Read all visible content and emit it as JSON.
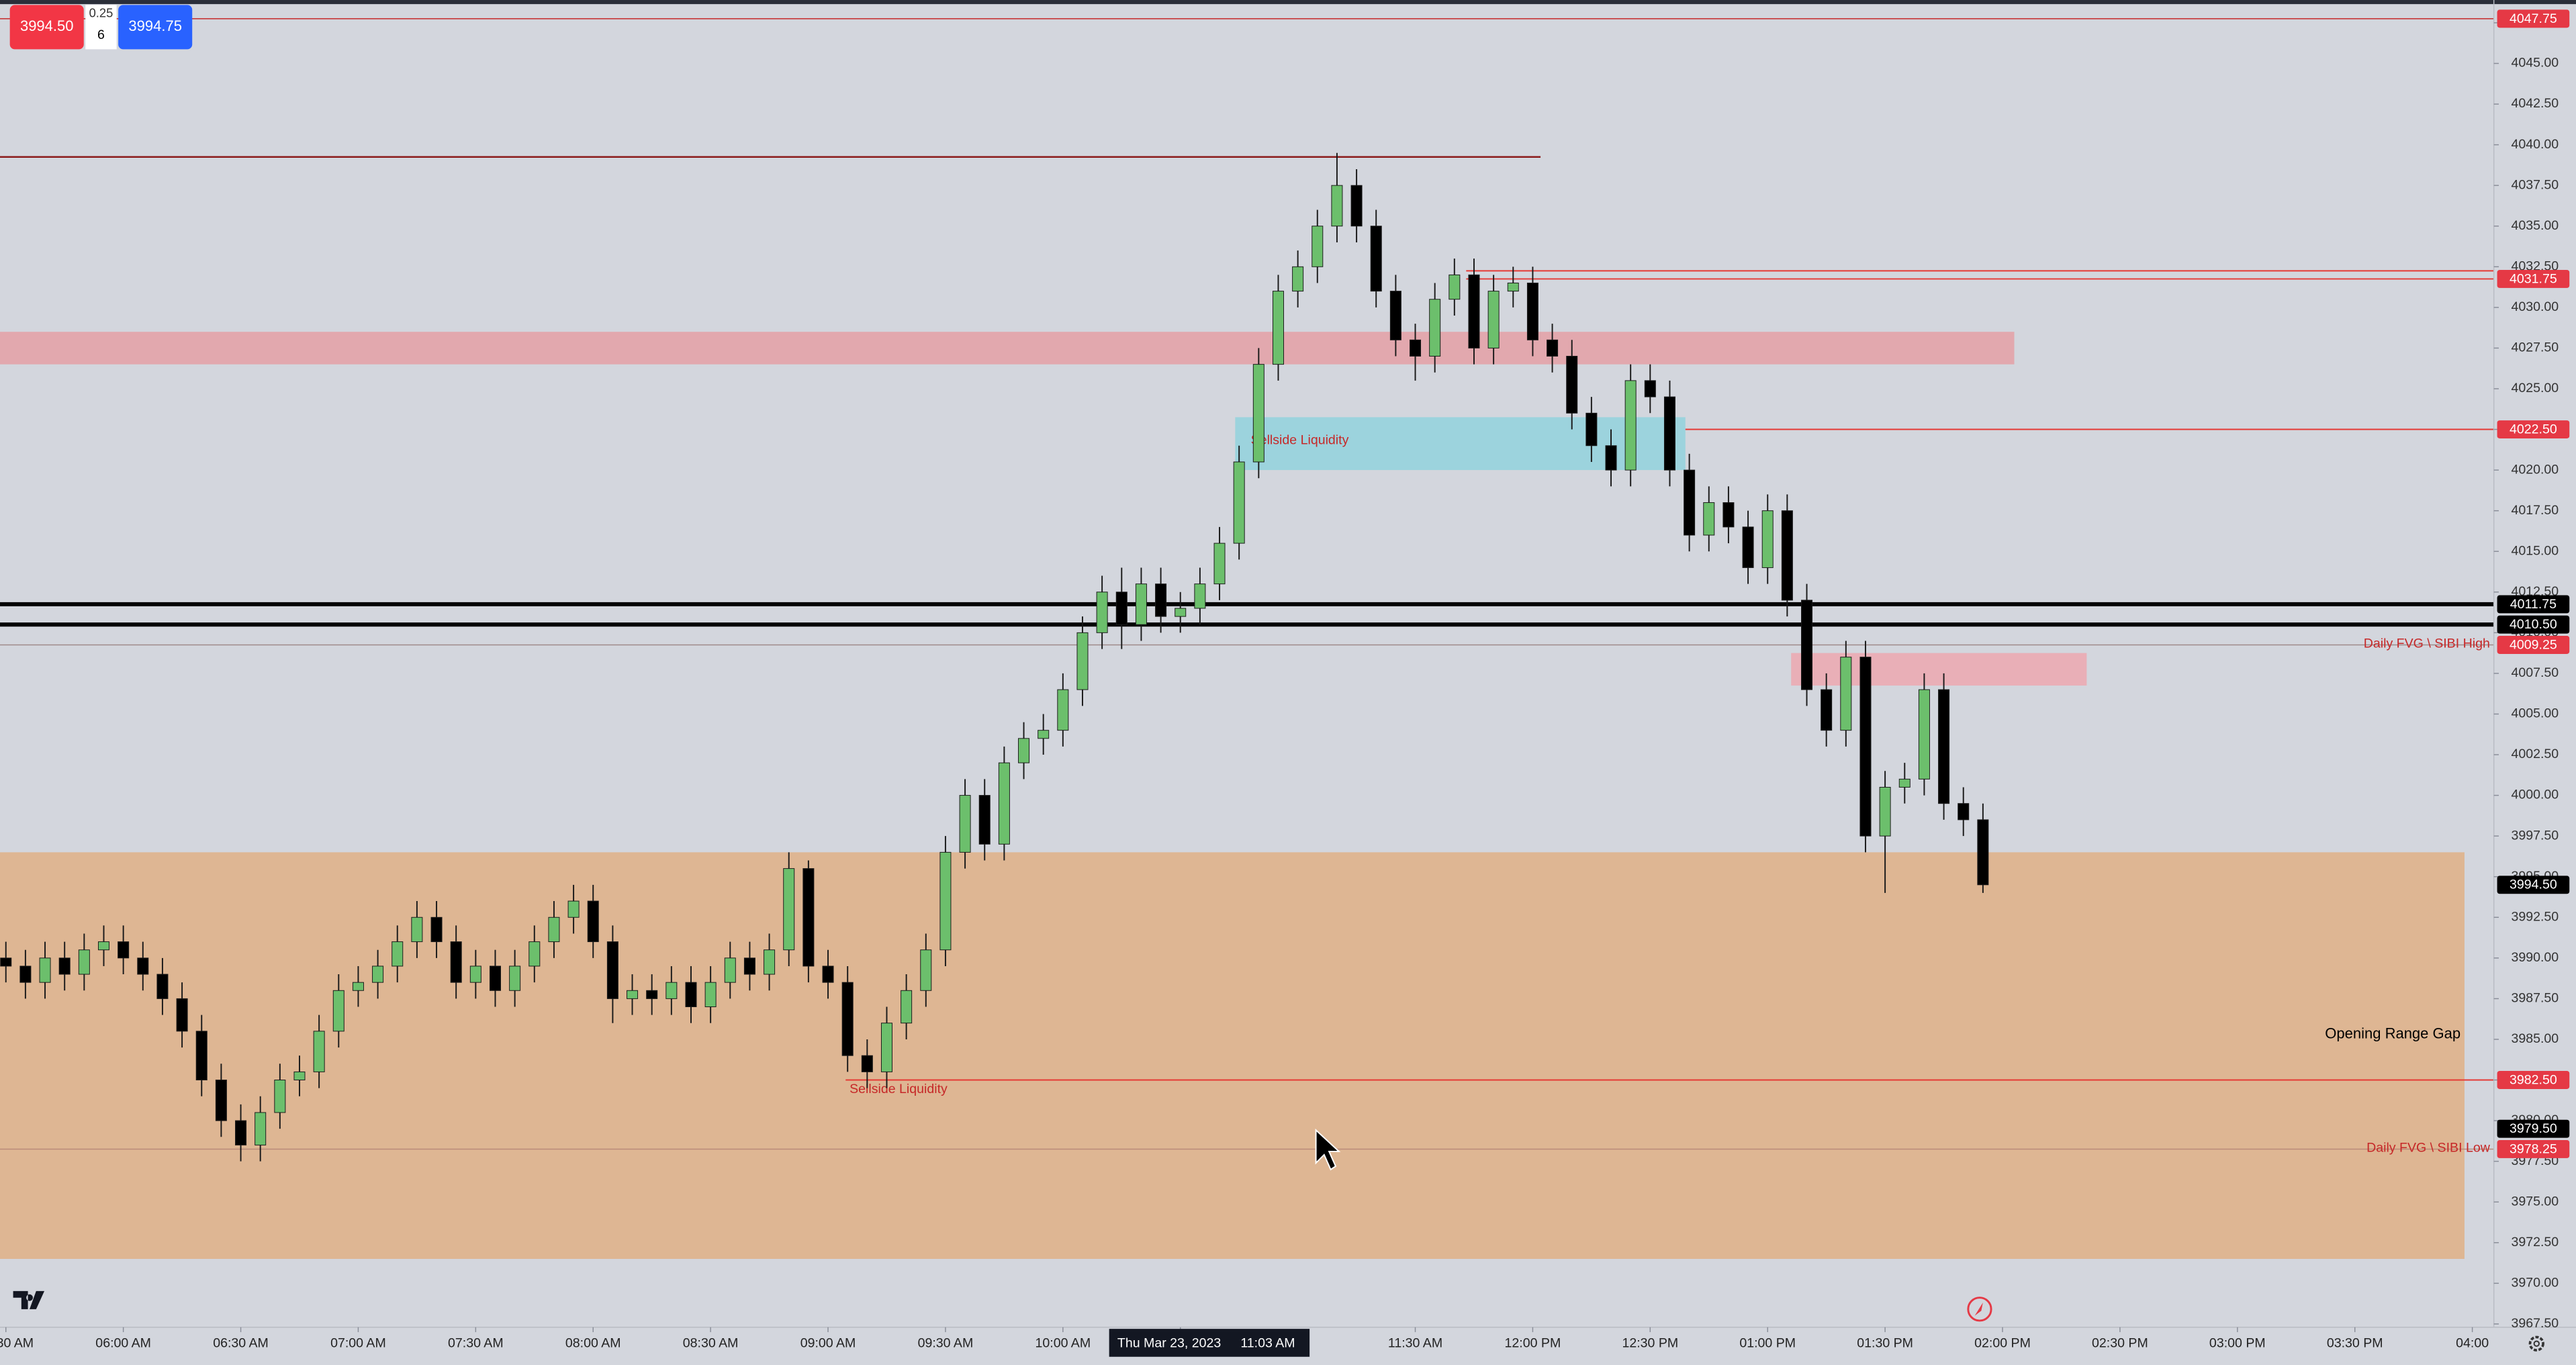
{
  "chart_data": {
    "type": "candlestick",
    "x": [
      330,
      335,
      340,
      345,
      350,
      355,
      360,
      365,
      370,
      375,
      380,
      385,
      390,
      395,
      400,
      405,
      410,
      415,
      420,
      425,
      430,
      435,
      440,
      445,
      450,
      455,
      460,
      465,
      470,
      475,
      480,
      485,
      490,
      495,
      500,
      505,
      510,
      515,
      520,
      525,
      530,
      535,
      540,
      545,
      550,
      555,
      560,
      565,
      570,
      575,
      580,
      585,
      590,
      595,
      600,
      605,
      610,
      615,
      620,
      625,
      630,
      635,
      640,
      645,
      650,
      655,
      660,
      665,
      670,
      675,
      680,
      685,
      690,
      695,
      700,
      705,
      710,
      715,
      720,
      725,
      730,
      735,
      740,
      745,
      750,
      755,
      760,
      765,
      770,
      775,
      780,
      785,
      790,
      795,
      800,
      805,
      810,
      815,
      820,
      825,
      830,
      835
    ],
    "open": [
      3990,
      3989.5,
      3988.5,
      3990,
      3989,
      3990.5,
      3991,
      3990,
      3989,
      3987.5,
      3985.5,
      3982.5,
      3980,
      3978.5,
      3980.5,
      3982.5,
      3983,
      3985.5,
      3988,
      3988.5,
      3989.5,
      3991,
      3992.5,
      3991,
      3988.5,
      3989.5,
      3988,
      3989.5,
      3991,
      3992.5,
      3993.5,
      3991,
      3987.5,
      3988,
      3987.5,
      3988.5,
      3987,
      3988.5,
      3990,
      3989,
      3990.5,
      3995.5,
      3989.5,
      3988.5,
      3984,
      3983,
      3986,
      3988,
      3990.5,
      3996.5,
      4000,
      3997,
      4002,
      4003.5,
      4004,
      4006.5,
      4010,
      4012.5,
      4010.5,
      4013,
      4011,
      4011.5,
      4013,
      4015.5,
      4020.5,
      4026.5,
      4031,
      4032.5,
      4035,
      4037.5,
      4035,
      4031,
      4028,
      4027,
      4030.5,
      4032,
      4027.5,
      4031,
      4031.5,
      4028,
      4027,
      4023.5,
      4021.5,
      4020,
      4025.5,
      4024.5,
      4020,
      4016,
      4018,
      4016.5,
      4014,
      4017.5,
      4012,
      4006.5,
      4004,
      4008.5,
      3997.5,
      4000.5,
      4001,
      4006.5,
      3999.5,
      3998.5
    ],
    "high": [
      3991,
      3990.5,
      3991,
      3991,
      3991.5,
      3992,
      3992,
      3991,
      3990,
      3988.5,
      3986.5,
      3983.5,
      3981,
      3981.5,
      3983.5,
      3984,
      3986.5,
      3989,
      3989.5,
      3990.5,
      3992,
      3993.5,
      3993.5,
      3992,
      3990.5,
      3990.5,
      3990.5,
      3992,
      3993.5,
      3994.5,
      3994.5,
      3992,
      3989,
      3989,
      3989.5,
      3989.5,
      3989.5,
      3991,
      3991,
      3991.5,
      3996.5,
      3996,
      3990.5,
      3989.5,
      3985,
      3987,
      3989,
      3991.5,
      3997.5,
      4001,
      4001,
      4003,
      4004.5,
      4005,
      4007.5,
      4011,
      4013.5,
      4014,
      4014,
      4014,
      4012.5,
      4014,
      4016.5,
      4021.5,
      4027.5,
      4032,
      4033.5,
      4036,
      4039.5,
      4038.5,
      4036,
      4032,
      4029,
      4031.5,
      4033,
      4033,
      4032,
      4032.5,
      4032.5,
      4029,
      4028,
      4024.5,
      4022.5,
      4026.5,
      4026.5,
      4025.5,
      4021,
      4019,
      4019,
      4017.5,
      4018.5,
      4018.5,
      4013,
      4007.5,
      4009.5,
      4009.5,
      4001.5,
      4002,
      4007.5,
      4007.5,
      4000.5,
      3999.5
    ],
    "low": [
      3988.5,
      3987.5,
      3987.5,
      3988,
      3988,
      3989.5,
      3989,
      3988,
      3986.5,
      3984.5,
      3981.5,
      3979,
      3977.5,
      3977.5,
      3979.5,
      3981.5,
      3982,
      3984.5,
      3987,
      3987.5,
      3988.5,
      3990,
      3990,
      3987.5,
      3987.5,
      3987,
      3987,
      3988.5,
      3990,
      3991.5,
      3990,
      3986,
      3986.5,
      3986.5,
      3986.5,
      3986,
      3986,
      3987.5,
      3988,
      3988,
      3989.5,
      3988.5,
      3987.5,
      3983,
      3982,
      3982,
      3985,
      3987,
      3989.5,
      3995.5,
      3996,
      3996,
      4001,
      4002.5,
      4003,
      4005.5,
      4009,
      4009,
      4009.5,
      4010,
      4010,
      4010.5,
      4012,
      4014.5,
      4019.5,
      4025.5,
      4030,
      4031.5,
      4034,
      4034,
      4030,
      4027,
      4025.5,
      4026,
      4029.5,
      4026.5,
      4026.5,
      4030,
      4027,
      4026,
      4022.5,
      4020.5,
      4019,
      4019,
      4023.5,
      4019,
      4015,
      4015,
      4015.5,
      4013,
      4013,
      4011,
      4005.5,
      4003,
      4003,
      3996.5,
      3994,
      3999.5,
      4000,
      3998.5,
      3997.5,
      3994
    ],
    "close": [
      3989.5,
      3988.5,
      3990,
      3989,
      3990.5,
      3991,
      3990,
      3989,
      3987.5,
      3985.5,
      3982.5,
      3980,
      3978.5,
      3980.5,
      3982.5,
      3983,
      3985.5,
      3988,
      3988.5,
      3989.5,
      3991,
      3992.5,
      3991,
      3988.5,
      3989.5,
      3988,
      3989.5,
      3991,
      3992.5,
      3993.5,
      3991,
      3987.5,
      3988,
      3987.5,
      3988.5,
      3987,
      3988.5,
      3990,
      3989,
      3990.5,
      3995.5,
      3989.5,
      3988.5,
      3984,
      3983,
      3986,
      3988,
      3990.5,
      3996.5,
      4000,
      3997,
      4002,
      4003.5,
      4004,
      4006.5,
      4010,
      4012.5,
      4010.5,
      4013,
      4011,
      4011.5,
      4013,
      4015.5,
      4020.5,
      4026.5,
      4031,
      4032.5,
      4035,
      4037.5,
      4035,
      4031,
      4028,
      4027,
      4030.5,
      4032,
      4027.5,
      4031,
      4031.5,
      4028,
      4027,
      4023.5,
      4021.5,
      4020,
      4025.5,
      4024.5,
      4020,
      4016,
      4018,
      4016.5,
      4014,
      4017.5,
      4012,
      4006.5,
      4004,
      4008.5,
      3997.5,
      4000.5,
      4001,
      4006.5,
      3999.5,
      3998.5,
      3994.5
    ],
    "up_color": "#6cbf6c",
    "down_color": "#000000",
    "xlim": [
      328.5,
      965.5
    ],
    "xticks": [
      {
        "value": 330,
        "label": "05:30 AM"
      },
      {
        "value": 360,
        "label": "06:00 AM"
      },
      {
        "value": 390,
        "label": "06:30 AM"
      },
      {
        "value": 420,
        "label": "07:00 AM"
      },
      {
        "value": 450,
        "label": "07:30 AM"
      },
      {
        "value": 480,
        "label": "08:00 AM"
      },
      {
        "value": 510,
        "label": "08:30 AM"
      },
      {
        "value": 540,
        "label": "09:00 AM"
      },
      {
        "value": 570,
        "label": "09:30 AM"
      },
      {
        "value": 600,
        "label": "10:00 AM"
      },
      {
        "value": 630,
        "label": "10:30 AM"
      },
      {
        "value": 690,
        "label": "11:30 AM"
      },
      {
        "value": 720,
        "label": "12:00 PM"
      },
      {
        "value": 750,
        "label": "12:30 PM"
      },
      {
        "value": 780,
        "label": "01:00 PM"
      },
      {
        "value": 810,
        "label": "01:30 PM"
      },
      {
        "value": 840,
        "label": "02:00 PM"
      },
      {
        "value": 870,
        "label": "02:30 PM"
      },
      {
        "value": 900,
        "label": "03:00 PM"
      },
      {
        "value": 930,
        "label": "03:30 PM"
      },
      {
        "value": 960,
        "label": "04:00"
      }
    ],
    "ylim": [
      3967.3,
      4048.9
    ],
    "yticks": [
      {
        "value": 3967.5,
        "label": "3967.50"
      },
      {
        "value": 3970,
        "label": "3970.00"
      },
      {
        "value": 3972.5,
        "label": "3972.50"
      },
      {
        "value": 3975,
        "label": "3975.00"
      },
      {
        "value": 3977.5,
        "label": "3977.50"
      },
      {
        "value": 3980,
        "label": "3980.00"
      },
      {
        "value": 3982.5,
        "label": "3982.50"
      },
      {
        "value": 3985,
        "label": "3985.00"
      },
      {
        "value": 3987.5,
        "label": "3987.50"
      },
      {
        "value": 3990,
        "label": "3990.00"
      },
      {
        "value": 3992.5,
        "label": "3992.50"
      },
      {
        "value": 3995,
        "label": "3995.00"
      },
      {
        "value": 3997.5,
        "label": "3997.50"
      },
      {
        "value": 4000,
        "label": "4000.00"
      },
      {
        "value": 4002.5,
        "label": "4002.50"
      },
      {
        "value": 4005,
        "label": "4005.00"
      },
      {
        "value": 4007.5,
        "label": "4007.50"
      },
      {
        "value": 4010,
        "label": "4010.00"
      },
      {
        "value": 4012.5,
        "label": "4012.50"
      },
      {
        "value": 4015,
        "label": "4015.00"
      },
      {
        "value": 4017.5,
        "label": "4017.50"
      },
      {
        "value": 4020,
        "label": "4020.00"
      },
      {
        "value": 4022.5,
        "label": "4022.50"
      },
      {
        "value": 4025,
        "label": "4025.00"
      },
      {
        "value": 4027.5,
        "label": "4027.50"
      },
      {
        "value": 4030,
        "label": "4030.00"
      },
      {
        "value": 4032.5,
        "label": "4032.50"
      },
      {
        "value": 4035,
        "label": "4035.00"
      },
      {
        "value": 4037.5,
        "label": "4037.50"
      },
      {
        "value": 4040,
        "label": "4040.00"
      },
      {
        "value": 4042.5,
        "label": "4042.50"
      },
      {
        "value": 4045,
        "label": "4045.00"
      },
      {
        "value": 4047.5,
        "label": "4047.50"
      }
    ],
    "grid": false,
    "zones": [
      {
        "range": [
          3971.5,
          3996.5
        ],
        "x": [
          328.5,
          958
        ],
        "color": "#deb48e"
      },
      {
        "range": [
          4026.5,
          4028.5
        ],
        "x": [
          328.5,
          843
        ],
        "color": "#e3a5ab"
      },
      {
        "range": [
          4020,
          4023.25
        ],
        "x": [
          644,
          759
        ],
        "color": "#99d3dc"
      },
      {
        "range": [
          4006.75,
          4008.75
        ],
        "x": [
          786,
          861.5
        ],
        "color": "#eaadb4"
      }
    ],
    "lines": [
      {
        "value": 4047.75,
        "x": [
          328.5,
          965.5
        ],
        "color": "#c62828",
        "width": 0.6
      },
      {
        "value": 4039.25,
        "x": [
          328.5,
          722
        ],
        "color": "#8b1a1a",
        "width": 1
      },
      {
        "value": 4032.25,
        "x": [
          703,
          965.5
        ],
        "color": "#e53935",
        "width": 0.8
      },
      {
        "value": 4031.75,
        "x": [
          703,
          965.5
        ],
        "color": "#e53935",
        "width": 0.8
      },
      {
        "value": 4022.5,
        "x": [
          759,
          965.5
        ],
        "color": "#e53935",
        "width": 0.8
      },
      {
        "value": 4011.75,
        "x": [
          328.5,
          965.5
        ],
        "color": "#000000",
        "width": 2.5
      },
      {
        "value": 4010.5,
        "x": [
          328.5,
          965.5
        ],
        "color": "#000000",
        "width": 2.5
      },
      {
        "value": 4009.25,
        "x": [
          328.5,
          965.5
        ],
        "color": "#9e8a8a",
        "width": 0.6
      },
      {
        "value": 3982.5,
        "x": [
          544.5,
          965.5
        ],
        "color": "#e53935",
        "width": 0.8
      },
      {
        "value": 3978.25,
        "x": [
          328.5,
          965.5
        ],
        "color": "#b98a7a",
        "width": 0.6
      }
    ],
    "annotations": [
      {
        "text": "Sellside Liquidity",
        "x": 648,
        "y": 4021.8,
        "color": "#c62828",
        "anchor": "start"
      },
      {
        "text": "Sellside Liquidity",
        "x": 545.5,
        "y": 3981.9,
        "color": "#c62828",
        "anchor": "start"
      },
      {
        "text": "Daily FVG \\ SIBI High",
        "x": 964.5,
        "y": 4009.3,
        "color": "#c62828",
        "anchor": "end"
      },
      {
        "text": "Daily FVG \\ SIBI Low",
        "x": 964.5,
        "y": 3978.3,
        "color": "#c62828",
        "anchor": "end"
      },
      {
        "text": "Opening Range Gap",
        "x": 957,
        "y": 3985.3,
        "color": "#000000",
        "anchor": "end"
      }
    ],
    "price_labels": [
      {
        "value": 4047.75,
        "label": "4047.75",
        "color": "#e53945"
      },
      {
        "value": 4031.75,
        "label": "4031.75",
        "color": "#e53945"
      },
      {
        "value": 4022.5,
        "label": "4022.50",
        "color": "#e53945"
      },
      {
        "value": 4011.75,
        "label": "4011.75",
        "color": "#000000"
      },
      {
        "value": 4010.5,
        "label": "4010.50",
        "color": "#000000"
      },
      {
        "value": 4009.25,
        "label": "4009.25",
        "color": "#e53945"
      },
      {
        "value": 3994.5,
        "label": "3994.50",
        "color": "#000000"
      },
      {
        "value": 3982.5,
        "label": "3982.50",
        "color": "#e53945"
      },
      {
        "value": 3979.5,
        "label": "3979.50",
        "color": "#000000"
      },
      {
        "value": 3978.25,
        "label": "3978.25",
        "color": "#e53945"
      }
    ],
    "crosshair": {
      "date": "Thu Mar 23, 2023",
      "time": "11:03 AM",
      "x": 663
    }
  },
  "order_panel": {
    "sell": "3994.50",
    "tick": "0.25",
    "quantity": "6",
    "buy": "3994.75"
  }
}
